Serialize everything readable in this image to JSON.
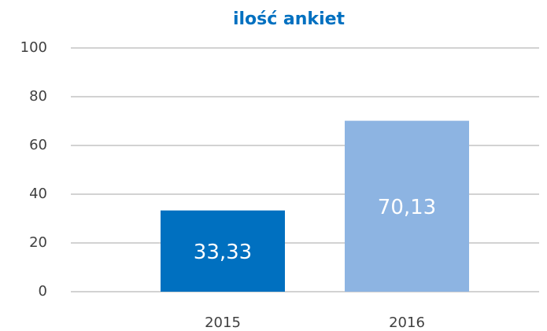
{
  "chart_data": {
    "type": "bar",
    "title": "ilość ankiet",
    "categories": [
      "2015",
      "2016"
    ],
    "values": [
      33.33,
      70.13
    ],
    "value_labels": [
      "33,33",
      "70,13"
    ],
    "colors": [
      "#0070c0",
      "#8db4e2"
    ],
    "ylim": [
      0,
      100
    ],
    "yticks": [
      0,
      20,
      40,
      60,
      80,
      100
    ],
    "grid": true
  }
}
